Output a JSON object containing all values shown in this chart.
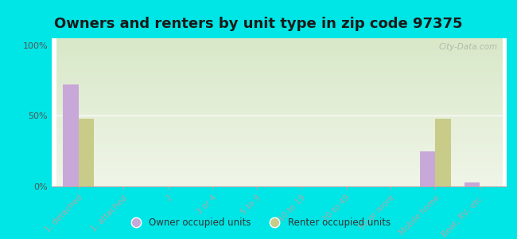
{
  "title": "Owners and renters by unit type in zip code 97375",
  "categories": [
    "1, detached",
    "1, attached",
    "2",
    "3 or 4",
    "5 to 9",
    "10 to 19",
    "20 to 49",
    "50 or more",
    "Mobile home",
    "Boat, RV, etc."
  ],
  "owner_values": [
    72,
    0,
    0,
    0,
    0,
    0,
    0,
    0,
    25,
    3
  ],
  "renter_values": [
    48,
    0,
    0,
    0,
    0,
    0,
    0,
    0,
    48,
    0
  ],
  "owner_color": "#c8a8d8",
  "renter_color": "#c8cc88",
  "gradient_top": "#d8e8c8",
  "gradient_bottom": "#f0f5e8",
  "bg_color": "#00e5e5",
  "yticks": [
    0,
    50,
    100
  ],
  "ylabels": [
    "0%",
    "50%",
    "100%"
  ],
  "ylim": [
    0,
    105
  ],
  "legend_owner": "Owner occupied units",
  "legend_renter": "Renter occupied units",
  "watermark": "City-Data.com",
  "title_fontsize": 13,
  "bar_width": 0.35
}
